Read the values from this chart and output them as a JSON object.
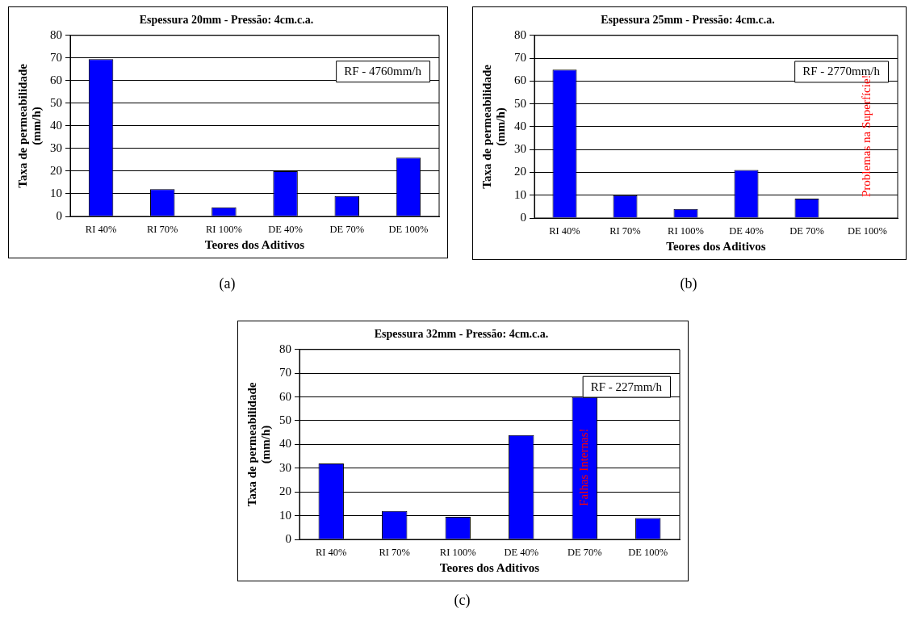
{
  "chart_data": [
    {
      "type": "bar",
      "title": "Espessura 20mm - Pressão: 4cm.c.a.",
      "xlabel": "Teores dos Aditivos",
      "ylabel": "Taxa de permeabilidade\n(mm/h)",
      "categories": [
        "RI 40%",
        "RI 70%",
        "RI 100%",
        "DE 40%",
        "DE 70%",
        "DE 100%"
      ],
      "values": [
        69.5,
        12,
        4,
        20,
        9,
        26
      ],
      "color": "#0000ff",
      "ylim": [
        0,
        80
      ],
      "yticks": [
        0,
        10,
        20,
        30,
        40,
        50,
        60,
        70,
        80
      ],
      "grid": "y",
      "legend": false,
      "annotations": [
        "RF - 4760mm/h",
        "(a)"
      ]
    },
    {
      "type": "bar",
      "title": "Espessura 25mm - Pressão: 4cm.c.a.",
      "xlabel": "Teores dos Aditivos",
      "ylabel": "Taxa de permeabilidade\n(mm/h)",
      "categories": [
        "RI 40%",
        "RI 70%",
        "RI 100%",
        "DE 40%",
        "DE 70%",
        "DE 100%"
      ],
      "values": [
        65,
        10,
        4,
        21,
        8.5,
        null
      ],
      "color": "#0000ff",
      "ylim": [
        0,
        80
      ],
      "yticks": [
        0,
        10,
        20,
        30,
        40,
        50,
        60,
        70,
        80
      ],
      "grid": "y",
      "legend": false,
      "annotations": [
        "RF - 2770mm/h",
        "Problemas na Superfície!",
        "(b)"
      ]
    },
    {
      "type": "bar",
      "title": "Espessura 32mm - Pressão: 4cm.c.a.",
      "xlabel": "Teores dos Aditivos",
      "ylabel": "Taxa de permeabilidade\n(mm/h)",
      "categories": [
        "RI 40%",
        "RI 70%",
        "RI 100%",
        "DE 40%",
        "DE 70%",
        "DE 100%"
      ],
      "values": [
        32,
        12,
        9.5,
        44,
        60,
        9
      ],
      "color": "#0000ff",
      "ylim": [
        0,
        80
      ],
      "yticks": [
        0,
        10,
        20,
        30,
        40,
        50,
        60,
        70,
        80
      ],
      "grid": "y",
      "legend": false,
      "annotations": [
        "RF - 227mm/h",
        "Falhas Internas!",
        "(c)"
      ]
    }
  ]
}
